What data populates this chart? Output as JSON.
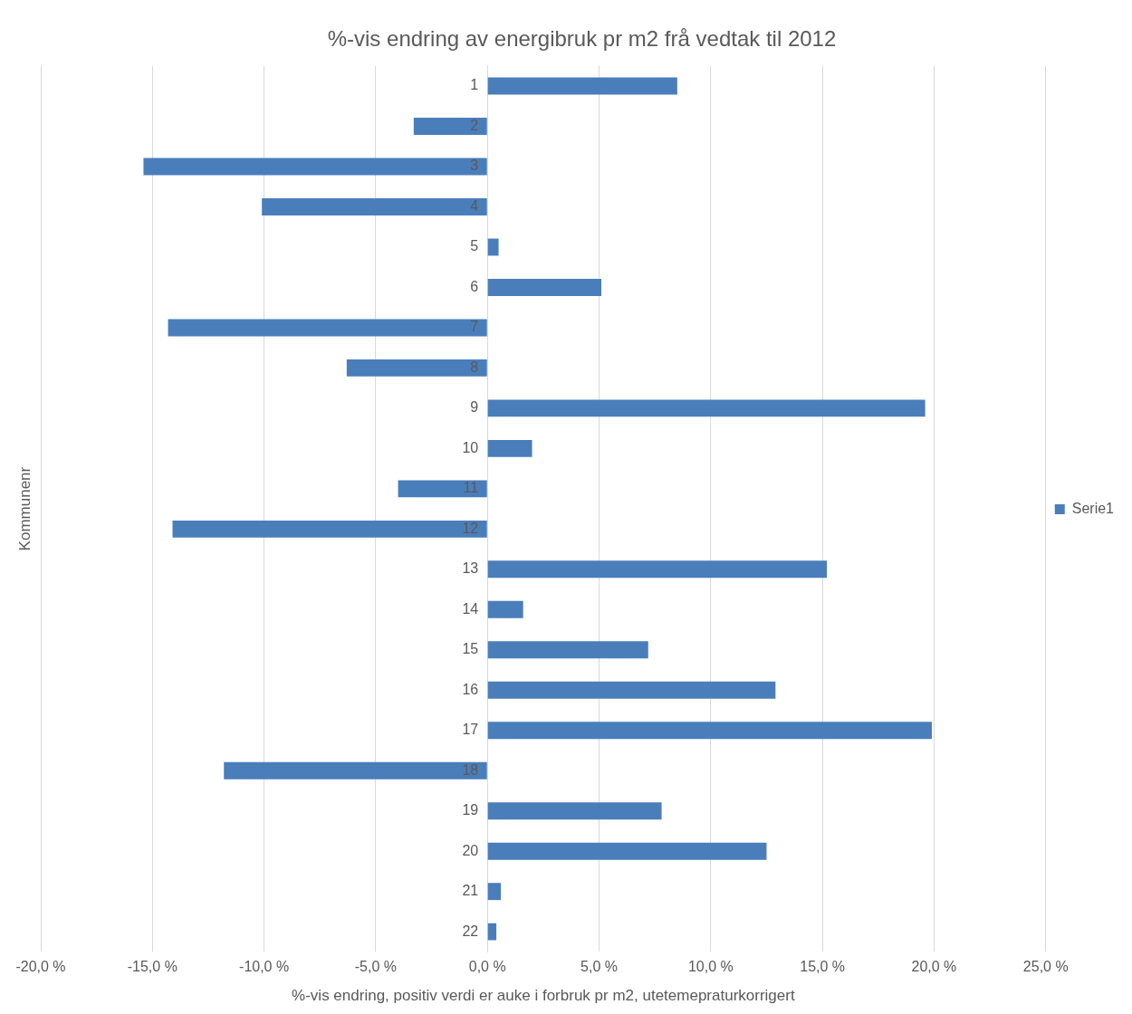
{
  "chart_data": {
    "type": "bar",
    "orientation": "horizontal",
    "title": "%-vis endring av energibruk pr m2 frå vedtak til 2012",
    "xlabel": "%-vis endring, positiv verdi er auke i forbruk pr m2, utetemepraturkorrigert",
    "ylabel": "Kommunenr",
    "categories": [
      "1",
      "2",
      "3",
      "4",
      "5",
      "6",
      "7",
      "8",
      "9",
      "10",
      "11",
      "12",
      "13",
      "14",
      "15",
      "16",
      "17",
      "18",
      "19",
      "20",
      "21",
      "22"
    ],
    "series": [
      {
        "name": "Serie1",
        "color": "#4a7ebb",
        "values": [
          8.5,
          -3.3,
          -15.4,
          -10.1,
          0.5,
          5.1,
          -14.3,
          -6.3,
          19.6,
          2.0,
          -4.0,
          -14.1,
          15.2,
          1.6,
          7.2,
          12.9,
          19.9,
          -11.8,
          7.8,
          12.5,
          0.6,
          0.4
        ]
      }
    ],
    "xlim": [
      -20,
      25
    ],
    "xticks": [
      {
        "value": -20,
        "label": "-20,0 %"
      },
      {
        "value": -15,
        "label": "-15,0 %"
      },
      {
        "value": -10,
        "label": "-10,0 %"
      },
      {
        "value": -5,
        "label": "-5,0 %"
      },
      {
        "value": 0,
        "label": "0,0 %"
      },
      {
        "value": 5,
        "label": "5,0 %"
      },
      {
        "value": 10,
        "label": "10,0 %"
      },
      {
        "value": 15,
        "label": "15,0 %"
      },
      {
        "value": 20,
        "label": "20,0 %"
      },
      {
        "value": 25,
        "label": "25,0 %"
      }
    ],
    "grid": "x",
    "legend": "right"
  }
}
